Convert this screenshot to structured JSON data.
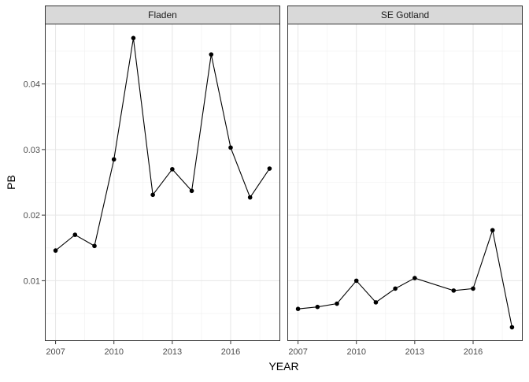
{
  "chart_data": {
    "type": "line",
    "xlabel": "YEAR",
    "ylabel": "PB",
    "xlim": [
      2006.45,
      2018.55
    ],
    "ylim": [
      0.0008,
      0.0492
    ],
    "x_ticks": [
      2007,
      2010,
      2013,
      2016
    ],
    "y_ticks": [
      0.01,
      0.02,
      0.03,
      0.04
    ],
    "y_tick_labels": [
      "0.01",
      "0.02",
      "0.03",
      "0.04"
    ],
    "grid": true,
    "facets": [
      {
        "label": "Fladen",
        "x": [
          2007,
          2008,
          2009,
          2010,
          2011,
          2012,
          2013,
          2014,
          2015,
          2016,
          2017,
          2018
        ],
        "y": [
          0.0146,
          0.017,
          0.0153,
          0.0285,
          0.047,
          0.0231,
          0.027,
          0.0237,
          0.0445,
          0.0303,
          0.0227,
          0.0271
        ]
      },
      {
        "label": "SE Gotland",
        "x": [
          2007,
          2008,
          2009,
          2010,
          2011,
          2012,
          2013,
          2015,
          2016,
          2017,
          2018
        ],
        "y": [
          0.0057,
          0.006,
          0.0065,
          0.01,
          0.0067,
          0.0088,
          0.0104,
          0.0085,
          0.0088,
          0.0177,
          0.0029
        ]
      }
    ]
  }
}
